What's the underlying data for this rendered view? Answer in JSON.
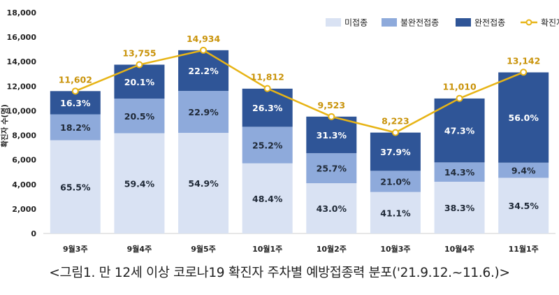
{
  "chart_data": {
    "type": "bar",
    "stacked": true,
    "categories": [
      "9월3주",
      "9월4주",
      "9월5주",
      "10월1주",
      "10월2주",
      "10월3주",
      "10월4주",
      "11월1주"
    ],
    "series": [
      {
        "name": "미접종",
        "color": "#d9e2f3",
        "label_color": "#1f2937",
        "percent_labels": [
          "65.5%",
          "59.4%",
          "54.9%",
          "48.4%",
          "43.0%",
          "41.1%",
          "38.3%",
          "34.5%"
        ],
        "percent": [
          65.5,
          59.4,
          54.9,
          48.4,
          43.0,
          41.1,
          38.3,
          34.5
        ]
      },
      {
        "name": "불완전접종",
        "color": "#8eaadb",
        "label_color": "#1f2937",
        "percent_labels": [
          "18.2%",
          "20.5%",
          "22.9%",
          "25.2%",
          "25.7%",
          "21.0%",
          "14.3%",
          "9.4%"
        ],
        "percent": [
          18.2,
          20.5,
          22.9,
          25.2,
          25.7,
          21.0,
          14.3,
          9.4
        ]
      },
      {
        "name": "완전접종",
        "color": "#2f5597",
        "label_color": "#ffffff",
        "percent_labels": [
          "16.3%",
          "20.1%",
          "22.2%",
          "26.3%",
          "31.3%",
          "37.9%",
          "47.3%",
          "56.0%"
        ],
        "percent": [
          16.3,
          20.1,
          22.2,
          26.3,
          31.3,
          37.9,
          47.3,
          56.0
        ]
      }
    ],
    "line": {
      "name": "확진자",
      "color": "#e7b416",
      "values": [
        11602,
        13755,
        14934,
        11812,
        9523,
        8223,
        11010,
        13142
      ],
      "labels": [
        "11,602",
        "13,755",
        "14,934",
        "11,812",
        "9,523",
        "8,223",
        "11,010",
        "13,142"
      ]
    },
    "ylabel": "확진자 수(명)",
    "ylim": [
      0,
      18000
    ],
    "yticks": [
      0,
      2000,
      4000,
      6000,
      8000,
      10000,
      12000,
      14000,
      16000,
      18000
    ],
    "ytick_labels": [
      "0",
      "2,000",
      "4,000",
      "6,000",
      "8,000",
      "10,000",
      "12,000",
      "14,000",
      "16,000",
      "18,000"
    ],
    "legend_position": "top-right",
    "grid": false
  },
  "caption": "<그림1. 만 12세 이상 코로나19 확진자 주차별 예방접종력 분포('21.9.12.~11.6.)>"
}
